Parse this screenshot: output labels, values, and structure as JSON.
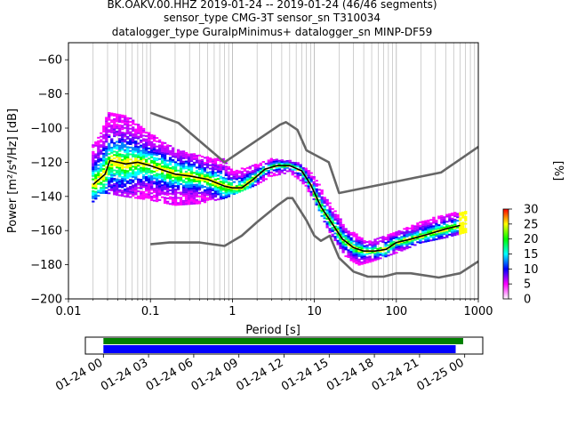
{
  "title_lines": [
    "BK.OAKV.00.HHZ   2019-01-24 -- 2019-01-24  (46/46 segments)",
    "sensor_type CMG-3T sensor_sn T310034",
    "datalogger_type GuralpMinimus+ datalogger_sn MINP-DF59"
  ],
  "chart_data": [
    {
      "type": "heatmap",
      "xlabel": "Period [s]",
      "ylabel": "Power [m²/s⁴/Hz] [dB]",
      "xscale": "log",
      "xlim": [
        0.01,
        1000
      ],
      "ylim": [
        -200,
        -50
      ],
      "x_ticks": [
        0.01,
        0.1,
        1,
        10,
        100,
        1000
      ],
      "x_tick_labels": [
        "0.01",
        "0.1",
        "1",
        "10",
        "100",
        "1000"
      ],
      "y_ticks": [
        -200,
        -180,
        -160,
        -140,
        -120,
        -100,
        -80,
        -60
      ],
      "y_tick_labels": [
        "−200",
        "−180",
        "−160",
        "−140",
        "−120",
        "−100",
        "−80",
        "−60"
      ],
      "grid": "x-major-and-minor",
      "colorbar": {
        "label": "[%]",
        "ticks": [
          0,
          5,
          10,
          15,
          20,
          25,
          30
        ],
        "tick_labels": [
          "0",
          "5",
          "10",
          "15",
          "20",
          "25",
          "30"
        ],
        "colormap": "pqlx",
        "colors": [
          "#ffffff",
          "#ff00ff",
          "#0000ff",
          "#00ffff",
          "#00ff00",
          "#ffff00",
          "#ff0000"
        ]
      },
      "series": [
        {
          "role": "noise-model-high",
          "color": "#666666",
          "points": [
            [
              0.1,
              -91
            ],
            [
              0.22,
              -97
            ],
            [
              0.8,
              -120
            ],
            [
              3.8,
              -98
            ],
            [
              4.5,
              -96.5
            ],
            [
              6.2,
              -101
            ],
            [
              8,
              -113
            ],
            [
              15,
              -120
            ],
            [
              20,
              -138
            ],
            [
              350,
              -126
            ],
            [
              1000,
              -111
            ]
          ]
        },
        {
          "role": "noise-model-low",
          "color": "#666666",
          "points": [
            [
              0.1,
              -168
            ],
            [
              0.17,
              -167
            ],
            [
              0.4,
              -167
            ],
            [
              0.8,
              -169
            ],
            [
              1.3,
              -163
            ],
            [
              2,
              -155
            ],
            [
              3.6,
              -145
            ],
            [
              4.7,
              -141
            ],
            [
              5.4,
              -141
            ],
            [
              8,
              -154
            ],
            [
              10,
              -163
            ],
            [
              12,
              -166
            ],
            [
              15.4,
              -163
            ],
            [
              20,
              -176
            ],
            [
              30,
              -184
            ],
            [
              45,
              -187
            ],
            [
              70,
              -187
            ],
            [
              100,
              -185
            ],
            [
              150,
              -185
            ],
            [
              330,
              -187.5
            ],
            [
              600,
              -185
            ],
            [
              1000,
              -178
            ]
          ]
        },
        {
          "role": "mean-psd",
          "color": "#000000",
          "points": [
            [
              0.02,
              -133
            ],
            [
              0.025,
              -129
            ],
            [
              0.028,
              -127
            ],
            [
              0.032,
              -119
            ],
            [
              0.04,
              -120
            ],
            [
              0.05,
              -121
            ],
            [
              0.07,
              -120
            ],
            [
              0.1,
              -122
            ],
            [
              0.15,
              -125
            ],
            [
              0.2,
              -127
            ],
            [
              0.3,
              -128
            ],
            [
              0.5,
              -130
            ],
            [
              0.8,
              -134
            ],
            [
              1,
              -135
            ],
            [
              1.3,
              -135
            ],
            [
              1.8,
              -130
            ],
            [
              2.5,
              -124
            ],
            [
              3.5,
              -122
            ],
            [
              5,
              -122
            ],
            [
              7,
              -125
            ],
            [
              9,
              -133
            ],
            [
              12,
              -146
            ],
            [
              16,
              -155
            ],
            [
              22,
              -165
            ],
            [
              30,
              -170
            ],
            [
              40,
              -172
            ],
            [
              55,
              -172
            ],
            [
              75,
              -171
            ],
            [
              100,
              -167
            ],
            [
              150,
              -165
            ],
            [
              250,
              -162
            ],
            [
              400,
              -159
            ],
            [
              600,
              -157
            ]
          ]
        }
      ],
      "density": [
        {
          "period": 0.02,
          "min": -143,
          "max": -110
        },
        {
          "period": 0.025,
          "min": -138,
          "max": -103
        },
        {
          "period": 0.03,
          "min": -138,
          "max": -91
        },
        {
          "period": 0.05,
          "min": -140,
          "max": -92
        },
        {
          "period": 0.1,
          "min": -142,
          "max": -103
        },
        {
          "period": 0.2,
          "min": -145,
          "max": -112
        },
        {
          "period": 0.4,
          "min": -144,
          "max": -116
        },
        {
          "period": 0.8,
          "min": -141,
          "max": -118
        },
        {
          "period": 1,
          "min": -139,
          "max": -125
        },
        {
          "period": 2,
          "min": -133,
          "max": -121
        },
        {
          "period": 3,
          "min": -128,
          "max": -118
        },
        {
          "period": 5,
          "min": -126,
          "max": -119
        },
        {
          "period": 7,
          "min": -131,
          "max": -121
        },
        {
          "period": 10,
          "min": -142,
          "max": -128
        },
        {
          "period": 15,
          "min": -160,
          "max": -143
        },
        {
          "period": 25,
          "min": -176,
          "max": -158
        },
        {
          "period": 35,
          "min": -180,
          "max": -163
        },
        {
          "period": 50,
          "min": -178,
          "max": -166
        },
        {
          "period": 100,
          "min": -173,
          "max": -160
        },
        {
          "period": 200,
          "min": -167,
          "max": -155
        },
        {
          "period": 400,
          "min": -164,
          "max": -150
        },
        {
          "period": 700,
          "min": -161,
          "max": -149
        }
      ]
    },
    {
      "type": "timeline",
      "x_tick_labels": [
        "01-24 00",
        "01-24 03",
        "01-24 06",
        "01-24 09",
        "01-24 12",
        "01-24 15",
        "01-24 18",
        "01-24 21",
        "01-25 00"
      ],
      "xlim_hours": [
        -1.2,
        25.2
      ],
      "tick_hours": [
        0,
        3,
        6,
        9,
        12,
        15,
        18,
        21,
        24
      ],
      "bars": [
        {
          "role": "data-available",
          "color": "#008000",
          "start_hour": 0,
          "end_hour": 23.9
        },
        {
          "role": "psd-used",
          "color": "#0000ff",
          "start_hour": 0,
          "end_hour": 23.4
        }
      ]
    }
  ]
}
